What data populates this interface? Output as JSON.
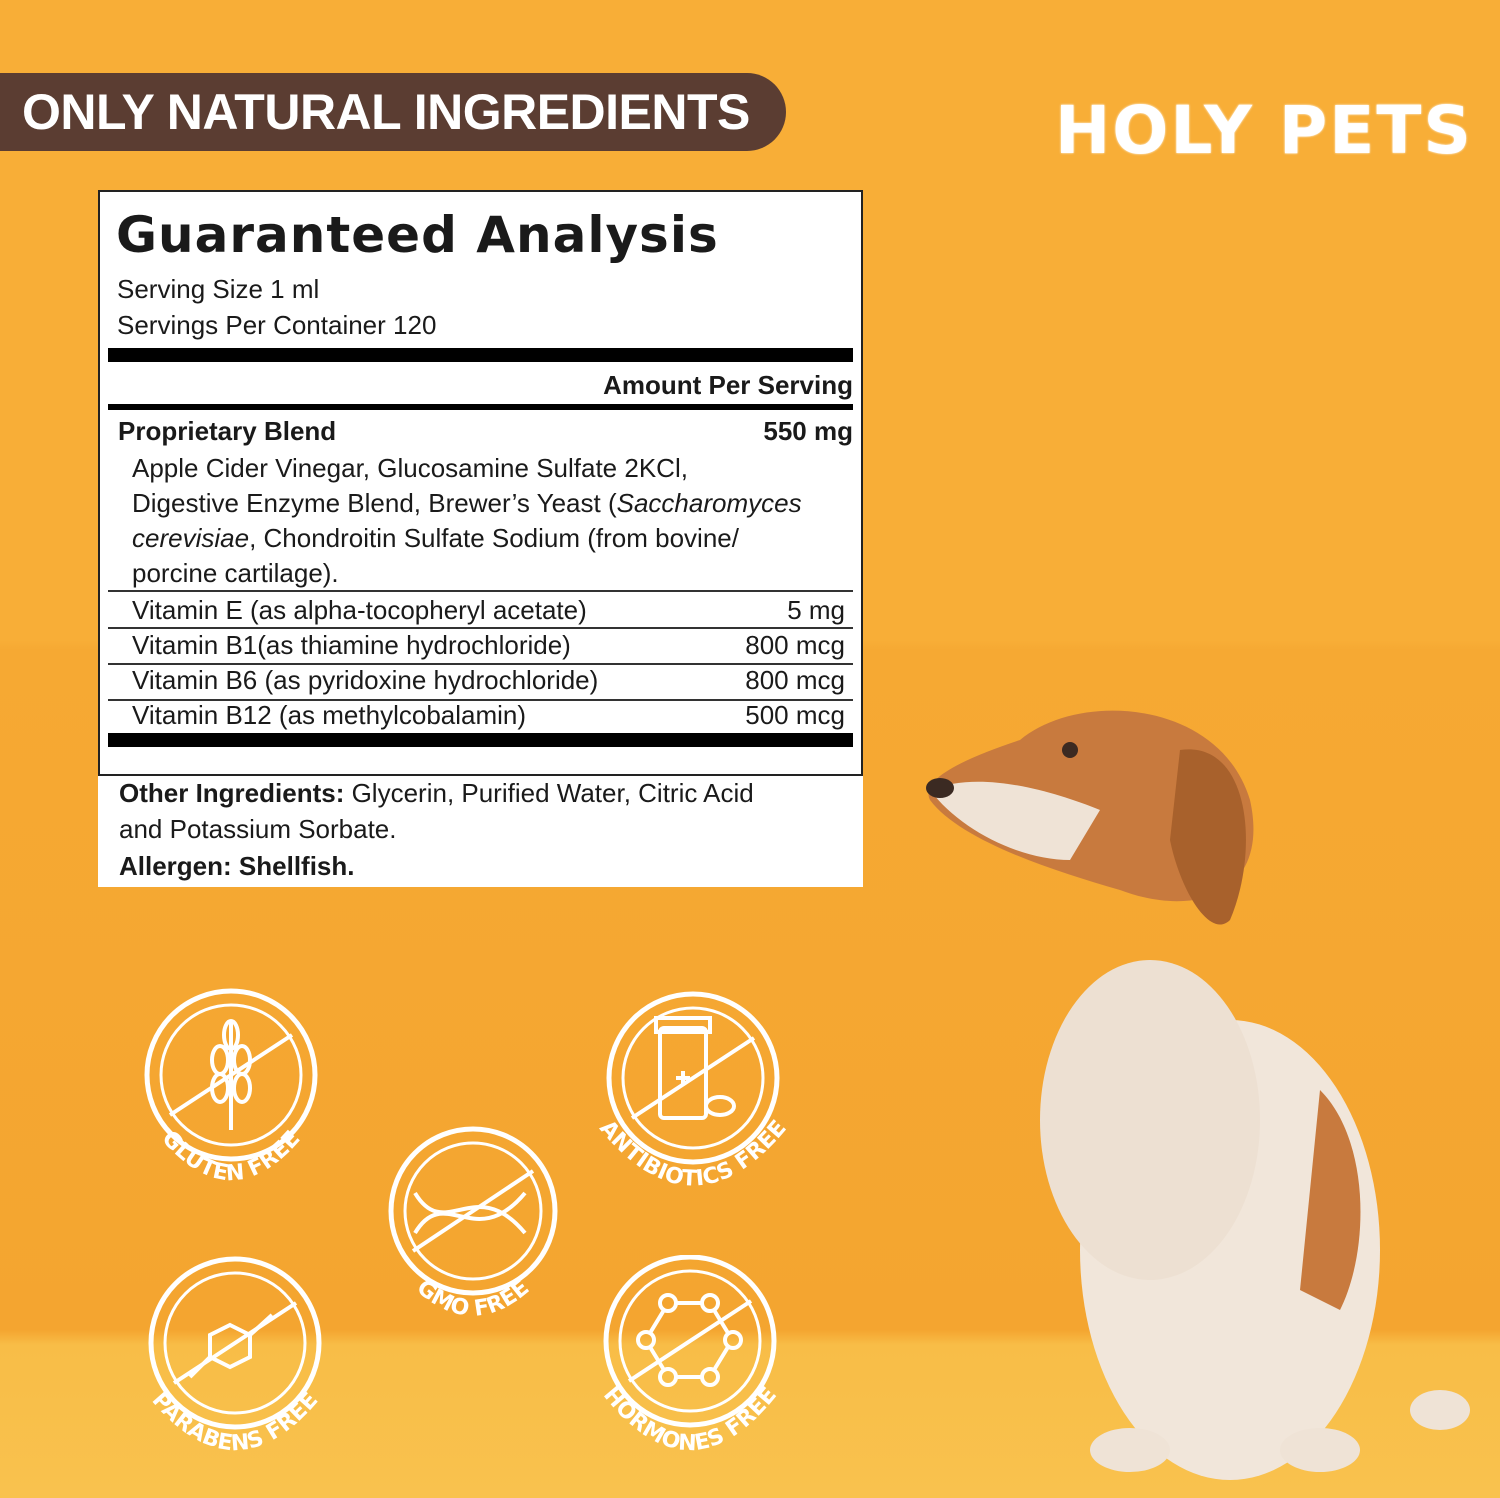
{
  "banner": {
    "text": "ONLY NATURAL INGREDIENTS"
  },
  "logo": {
    "text": "HOLY PETS"
  },
  "panel": {
    "title": "Guaranteed Analysis",
    "serving_size": "Serving Size 1 ml",
    "servings_per_container": "Servings Per Container 120",
    "amount_header": "Amount Per Serving",
    "blend": {
      "name": "Proprietary Blend",
      "amount": "550 mg",
      "lines": [
        "Apple Cider Vinegar, Glucosamine Sulfate 2KCl,",
        "Digestive Enzyme Blend, Brewer’s Yeast (",
        "Saccharomyces",
        "cerevisiae",
        ", Chondroitin Sulfate Sodium (from bovine/",
        "porcine cartilage)."
      ]
    },
    "rows": [
      {
        "name": "Vitamin E (as alpha-tocopheryl acetate)",
        "amount": "5 mg"
      },
      {
        "name": "Vitamin B1(as thiamine hydrochloride)",
        "amount": "800 mcg"
      },
      {
        "name": "Vitamin B6 (as pyridoxine hydrochloride)",
        "amount": "800 mcg"
      },
      {
        "name": "Vitamin B12 (as methylcobalamin)",
        "amount": "500 mcg"
      }
    ],
    "other_label": "Other Ingredients:",
    "other_text": " Glycerin, Purified Water, Citric Acid",
    "other_text2": "and Potassium Sorbate.",
    "allergen": "Allergen: Shellfish."
  },
  "badges": [
    {
      "label": "GLUTEN FREE",
      "icon": "wheat-icon"
    },
    {
      "label": "GMO FREE",
      "icon": "dna-icon"
    },
    {
      "label": "ANTIBIOTICS FREE",
      "icon": "pill-bottle-icon"
    },
    {
      "label": "PARABENS FREE",
      "icon": "molecule-icon"
    },
    {
      "label": "HORMONES FREE",
      "icon": "hormone-structure-icon"
    }
  ],
  "colors": {
    "background": "#F8AE37",
    "banner": "#5B3D32",
    "floor": "#F9C24E"
  }
}
